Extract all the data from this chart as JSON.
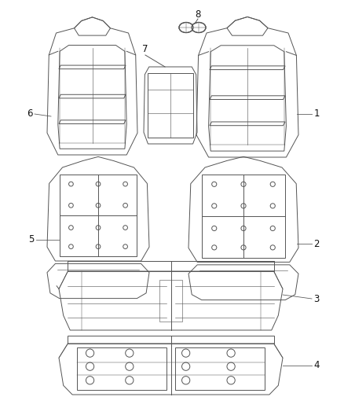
{
  "bg_color": "#ffffff",
  "line_color": "#555555",
  "label_color": "#111111",
  "lw": 0.7,
  "label_fontsize": 8.5
}
